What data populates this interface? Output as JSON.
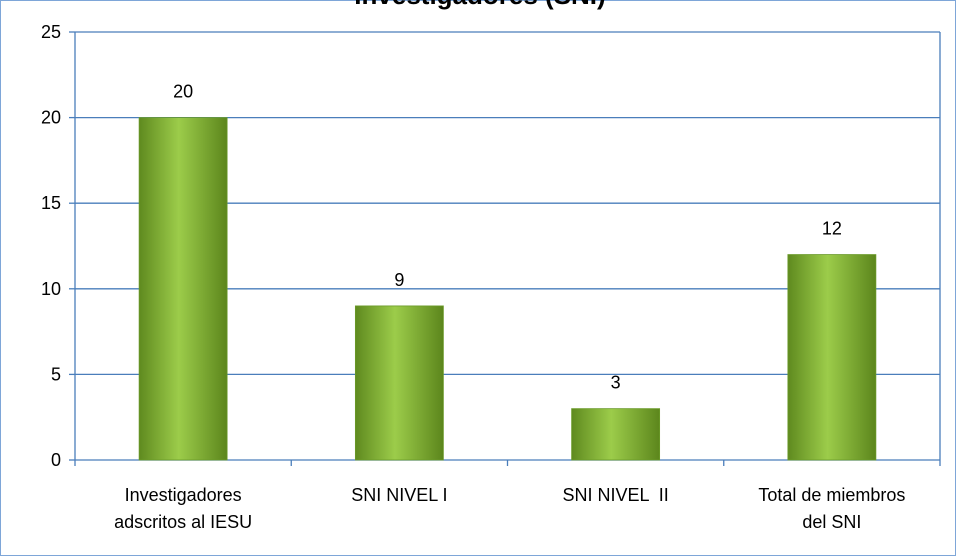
{
  "chart_data": {
    "type": "bar",
    "title": "Investigadores (SNI)",
    "categories": [
      "Investigadores adscritos al IESU",
      "SNI NIVEL I",
      "SNI NIVEL  II",
      "Total de miembros del SNI"
    ],
    "values": [
      20,
      9,
      3,
      12
    ],
    "color": "#8fbf3f",
    "ylim": [
      0,
      25
    ],
    "yticks": [
      0,
      5,
      10,
      15,
      20,
      25
    ],
    "grid": true
  }
}
